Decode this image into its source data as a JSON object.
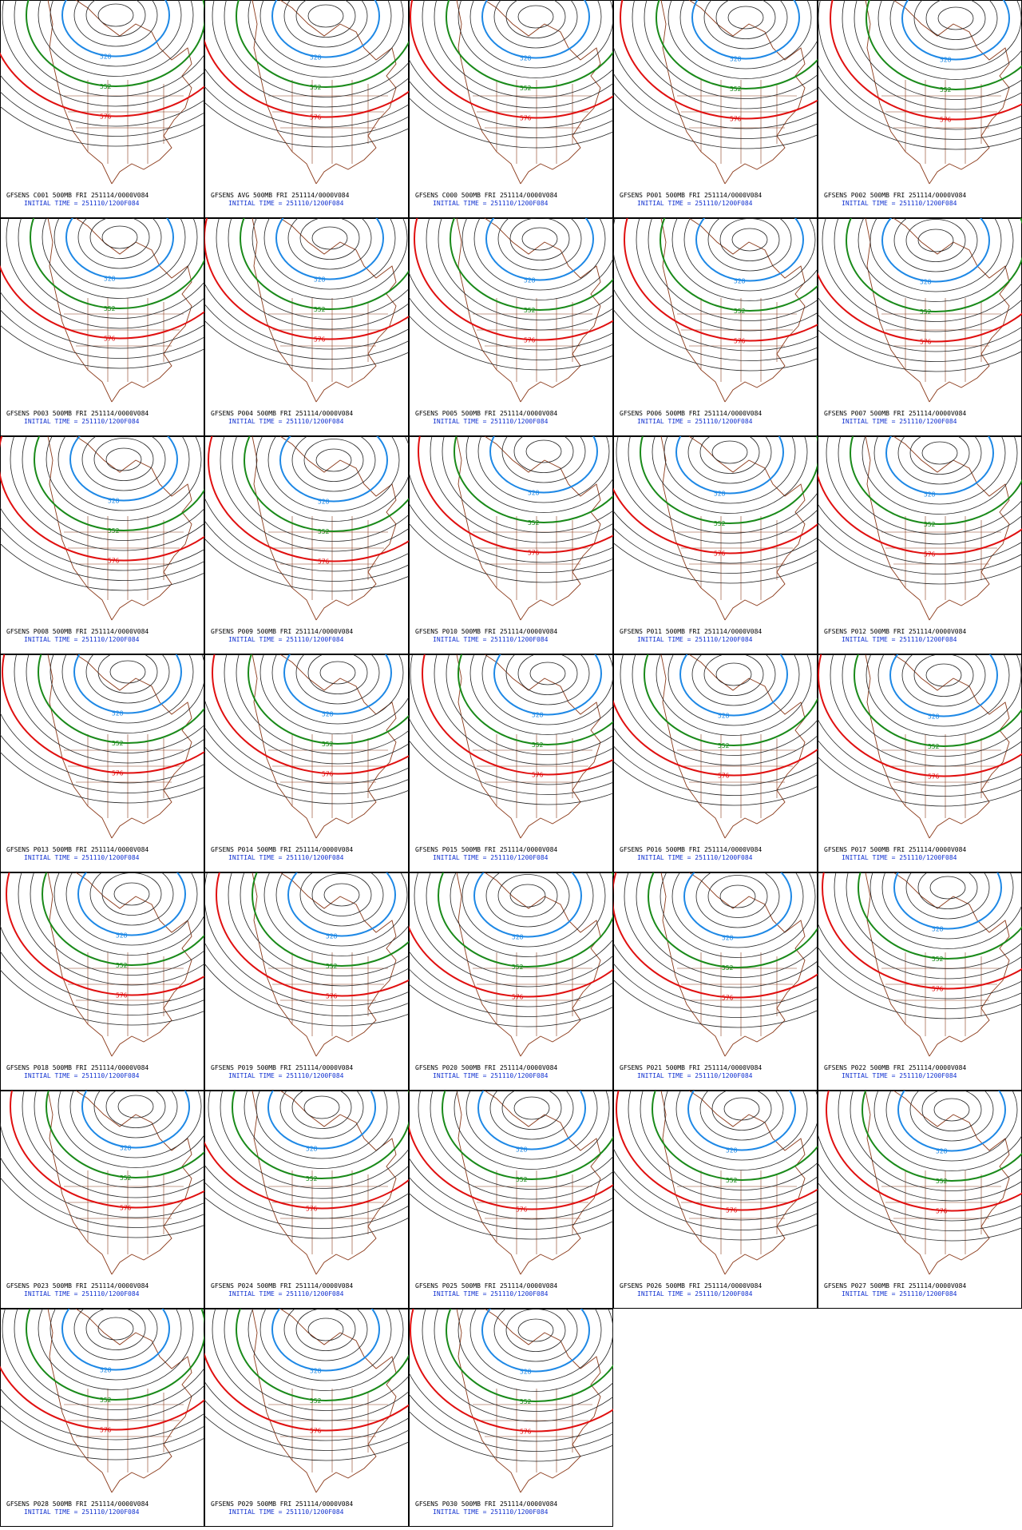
{
  "panels": [
    {
      "title": "GFSENS C001 500MB FRI 251114/0000V084",
      "subtitle": "INITIAL TIME = 251110/1200F084",
      "contour_labels": [
        "528",
        "552",
        "576"
      ]
    },
    {
      "title": "GFSENS AVG 500MB FRI 251114/0000V084",
      "subtitle": "INITIAL TIME = 251110/1200F084",
      "contour_labels": [
        "528",
        "552",
        "576"
      ]
    },
    {
      "title": "GFSENS C000 500MB FRI 251114/0000V084",
      "subtitle": "INITIAL TIME = 251110/1200F084",
      "contour_labels": [
        "528",
        "552",
        "576"
      ]
    },
    {
      "title": "GFSENS P001 500MB FRI 251114/0000V084",
      "subtitle": "INITIAL TIME = 251110/1200F084",
      "contour_labels": [
        "528",
        "552",
        "576"
      ]
    },
    {
      "title": "GFSENS P002 500MB FRI 251114/0000V084",
      "subtitle": "INITIAL TIME = 251110/1200F084",
      "contour_labels": [
        "528",
        "552",
        "576"
      ]
    },
    {
      "title": "GFSENS P003 500MB FRI 251114/0000V084",
      "subtitle": "INITIAL TIME = 251110/1200F084",
      "contour_labels": [
        "528",
        "552",
        "576"
      ]
    },
    {
      "title": "GFSENS P004 500MB FRI 251114/0000V084",
      "subtitle": "INITIAL TIME = 251110/1200F084",
      "contour_labels": [
        "528",
        "552",
        "576"
      ]
    },
    {
      "title": "GFSENS P005 500MB FRI 251114/0000V084",
      "subtitle": "INITIAL TIME = 251110/1200F084",
      "contour_labels": [
        "528",
        "552",
        "576"
      ]
    },
    {
      "title": "GFSENS P006 500MB FRI 251114/0000V084",
      "subtitle": "INITIAL TIME = 251110/1200F084",
      "contour_labels": [
        "528",
        "552",
        "576"
      ]
    },
    {
      "title": "GFSENS P007 500MB FRI 251114/0000V084",
      "subtitle": "INITIAL TIME = 251110/1200F084",
      "contour_labels": [
        "528",
        "552",
        "576"
      ]
    },
    {
      "title": "GFSENS P008 500MB FRI 251114/0000V084",
      "subtitle": "INITIAL TIME = 251110/1200F084",
      "contour_labels": [
        "528",
        "552",
        "576"
      ]
    },
    {
      "title": "GFSENS P009 500MB FRI 251114/0000V084",
      "subtitle": "INITIAL TIME = 251110/1200F084",
      "contour_labels": [
        "528",
        "552",
        "576"
      ]
    },
    {
      "title": "GFSENS P010 500MB FRI 251114/0000V084",
      "subtitle": "INITIAL TIME = 251110/1200F084",
      "contour_labels": [
        "528",
        "552",
        "576"
      ]
    },
    {
      "title": "GFSENS P011 500MB FRI 251114/0000V084",
      "subtitle": "INITIAL TIME = 251110/1200F084",
      "contour_labels": [
        "528",
        "552",
        "576"
      ]
    },
    {
      "title": "GFSENS P012 500MB FRI 251114/0000V084",
      "subtitle": "INITIAL TIME = 251110/1200F084",
      "contour_labels": [
        "528",
        "552",
        "576"
      ]
    },
    {
      "title": "GFSENS P013 500MB FRI 251114/0000V084",
      "subtitle": "INITIAL TIME = 251110/1200F084",
      "contour_labels": [
        "528",
        "552",
        "576"
      ]
    },
    {
      "title": "GFSENS P014 500MB FRI 251114/0000V084",
      "subtitle": "INITIAL TIME = 251110/1200F084",
      "contour_labels": [
        "528",
        "552",
        "576"
      ]
    },
    {
      "title": "GFSENS P015 500MB FRI 251114/0000V084",
      "subtitle": "INITIAL TIME = 251110/1200F084",
      "contour_labels": [
        "528",
        "552",
        "576"
      ]
    },
    {
      "title": "GFSENS P016 500MB FRI 251114/0000V084",
      "subtitle": "INITIAL TIME = 251110/1200F084",
      "contour_labels": [
        "528",
        "552",
        "576"
      ]
    },
    {
      "title": "GFSENS P017 500MB FRI 251114/0000V084",
      "subtitle": "INITIAL TIME = 251110/1200F084",
      "contour_labels": [
        "528",
        "552",
        "576"
      ]
    },
    {
      "title": "GFSENS P018 500MB FRI 251114/0000V084",
      "subtitle": "INITIAL TIME = 251110/1200F084",
      "contour_labels": [
        "528",
        "552",
        "576"
      ]
    },
    {
      "title": "GFSENS P019 500MB FRI 251114/0000V084",
      "subtitle": "INITIAL TIME = 251110/1200F084",
      "contour_labels": [
        "528",
        "552",
        "576"
      ]
    },
    {
      "title": "GFSENS P020 500MB FRI 251114/0000V084",
      "subtitle": "INITIAL TIME = 251110/1200F084",
      "contour_labels": [
        "528",
        "552",
        "576"
      ]
    },
    {
      "title": "GFSENS P021 500MB FRI 251114/0000V084",
      "subtitle": "INITIAL TIME = 251110/1200F084",
      "contour_labels": [
        "528",
        "552",
        "576"
      ]
    },
    {
      "title": "GFSENS P022 500MB FRI 251114/0000V084",
      "subtitle": "INITIAL TIME = 251110/1200F084",
      "contour_labels": [
        "528",
        "552",
        "576"
      ]
    },
    {
      "title": "GFSENS P023 500MB FRI 251114/0000V084",
      "subtitle": "INITIAL TIME = 251110/1200F084",
      "contour_labels": [
        "528",
        "552",
        "576"
      ]
    },
    {
      "title": "GFSENS P024 500MB FRI 251114/0000V084",
      "subtitle": "INITIAL TIME = 251110/1200F084",
      "contour_labels": [
        "528",
        "552",
        "576"
      ]
    },
    {
      "title": "GFSENS P025 500MB FRI 251114/0000V084",
      "subtitle": "INITIAL TIME = 251110/1200F084",
      "contour_labels": [
        "528",
        "552",
        "576"
      ]
    },
    {
      "title": "GFSENS P026 500MB FRI 251114/0000V084",
      "subtitle": "INITIAL TIME = 251110/1200F084",
      "contour_labels": [
        "528",
        "552",
        "576"
      ]
    },
    {
      "title": "GFSENS P027 500MB FRI 251114/0000V084",
      "subtitle": "INITIAL TIME = 251110/1200F084",
      "contour_labels": [
        "528",
        "552",
        "576"
      ]
    },
    {
      "title": "GFSENS P028 500MB FRI 251114/0000V084",
      "subtitle": "INITIAL TIME = 251110/1200F084",
      "contour_labels": [
        "528",
        "552",
        "576"
      ]
    },
    {
      "title": "GFSENS P029 500MB FRI 251114/0000V084",
      "subtitle": "INITIAL TIME = 251110/1200F084",
      "contour_labels": [
        "528",
        "552",
        "576"
      ]
    },
    {
      "title": "GFSENS P030 500MB FRI 251114/0000V084",
      "subtitle": "INITIAL TIME = 251110/1200F084",
      "contour_labels": [
        "528",
        "552",
        "576"
      ]
    }
  ]
}
